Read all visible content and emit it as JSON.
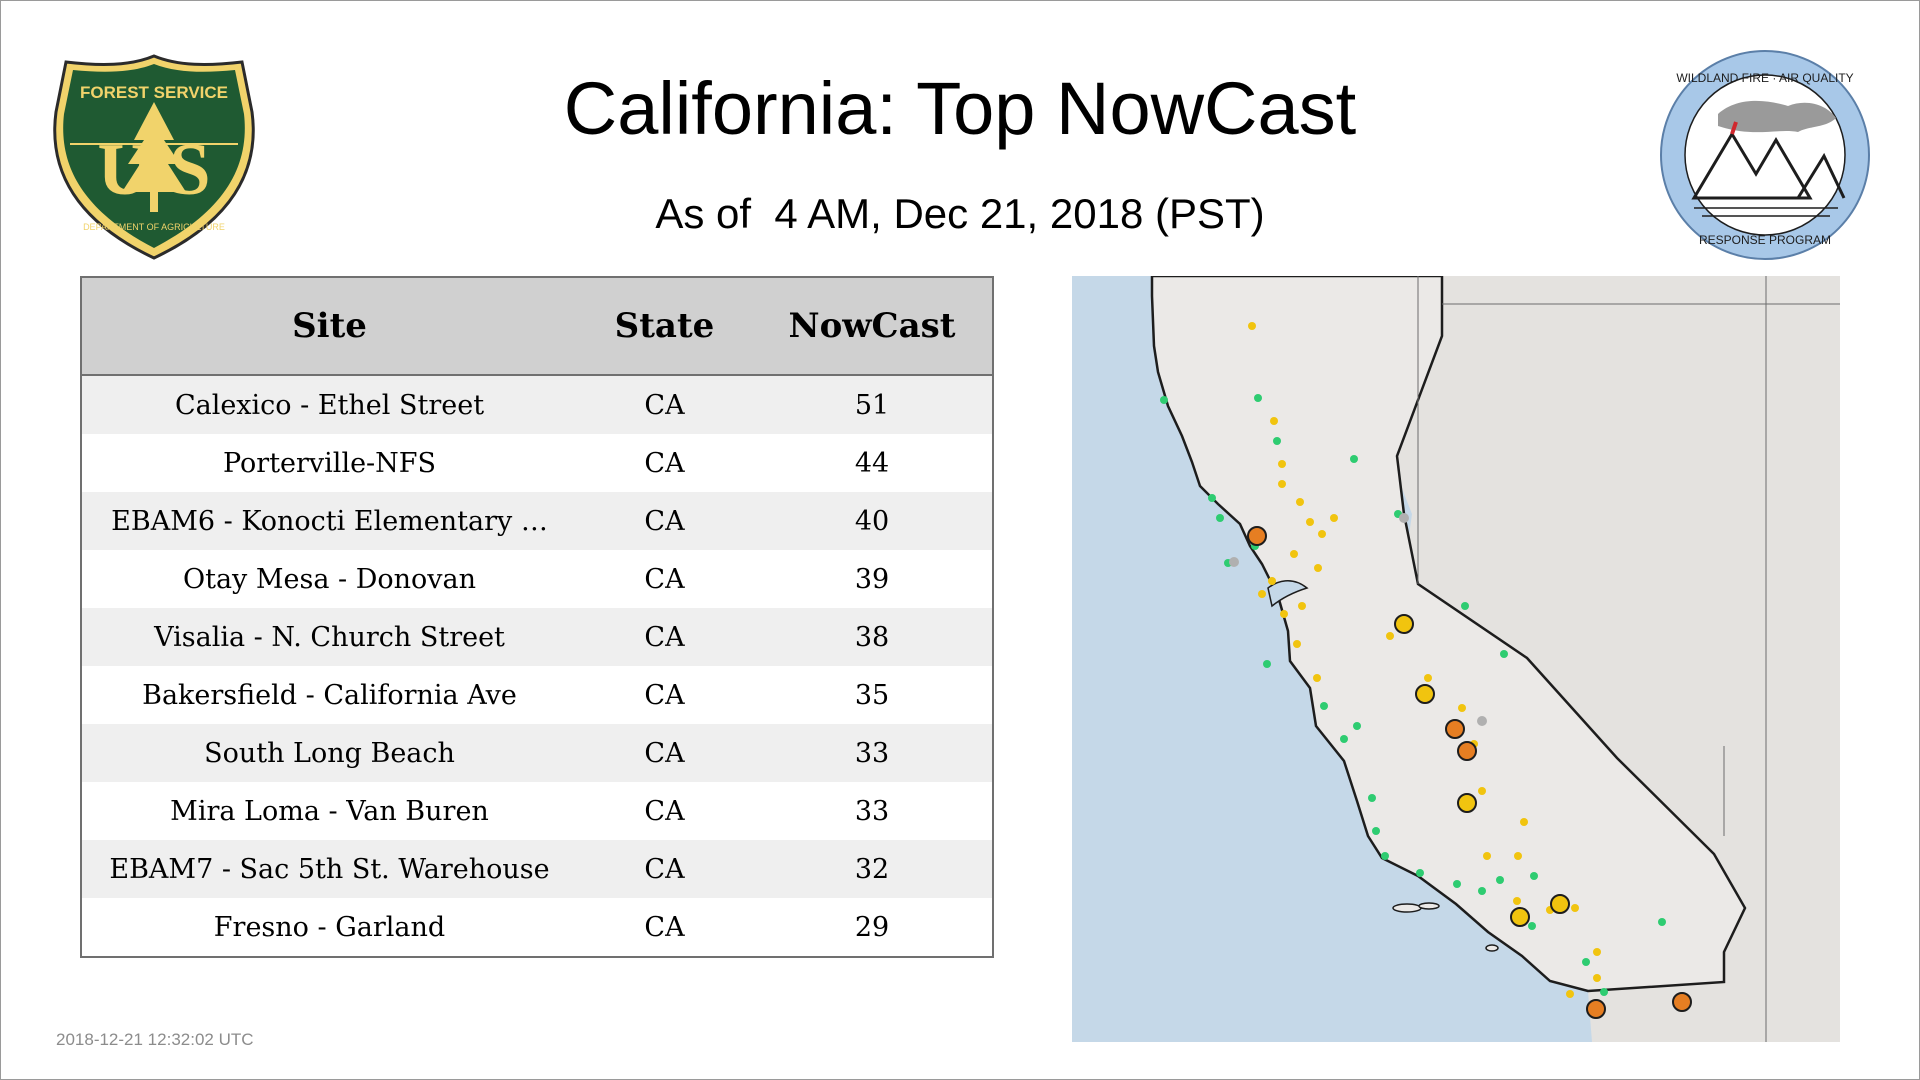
{
  "header": {
    "title": "California: Top NowCast",
    "subtitle": "As of  4 AM, Dec 21, 2018 (PST)"
  },
  "logos": {
    "left": {
      "top_text": "FOREST SERVICE",
      "letters": "U S",
      "bottom_text": "DEPARTMENT OF AGRICULTURE"
    },
    "right": {
      "top_text": "WILDLAND FIRE · AIR QUALITY",
      "bottom_text": "RESPONSE PROGRAM"
    }
  },
  "table": {
    "headers": {
      "site": "Site",
      "state": "State",
      "nowcast": "NowCast"
    },
    "rows": [
      {
        "site": "Calexico - Ethel Street",
        "state": "CA",
        "nowcast": "51"
      },
      {
        "site": "Porterville-NFS",
        "state": "CA",
        "nowcast": "44"
      },
      {
        "site": "EBAM6 - Konocti Elementary …",
        "state": "CA",
        "nowcast": "40"
      },
      {
        "site": "Otay Mesa - Donovan",
        "state": "CA",
        "nowcast": "39"
      },
      {
        "site": "Visalia - N. Church Street",
        "state": "CA",
        "nowcast": "38"
      },
      {
        "site": "Bakersfield - California Ave",
        "state": "CA",
        "nowcast": "35"
      },
      {
        "site": "South Long Beach",
        "state": "CA",
        "nowcast": "33"
      },
      {
        "site": "Mira Loma - Van Buren",
        "state": "CA",
        "nowcast": "33"
      },
      {
        "site": "EBAM7 - Sac 5th St. Warehouse",
        "state": "CA",
        "nowcast": "32"
      },
      {
        "site": "Fresno - Garland",
        "state": "CA",
        "nowcast": "29"
      }
    ]
  },
  "map": {
    "colors": {
      "water": "#c5d8e8",
      "land": "#ebe9e7",
      "good": "#2ecc71",
      "moderate": "#f1c40f",
      "usg": "#e67e22",
      "na": "#b0b0b0"
    }
  },
  "footer": {
    "timestamp": "2018-12-21 12:32:02 UTC"
  }
}
